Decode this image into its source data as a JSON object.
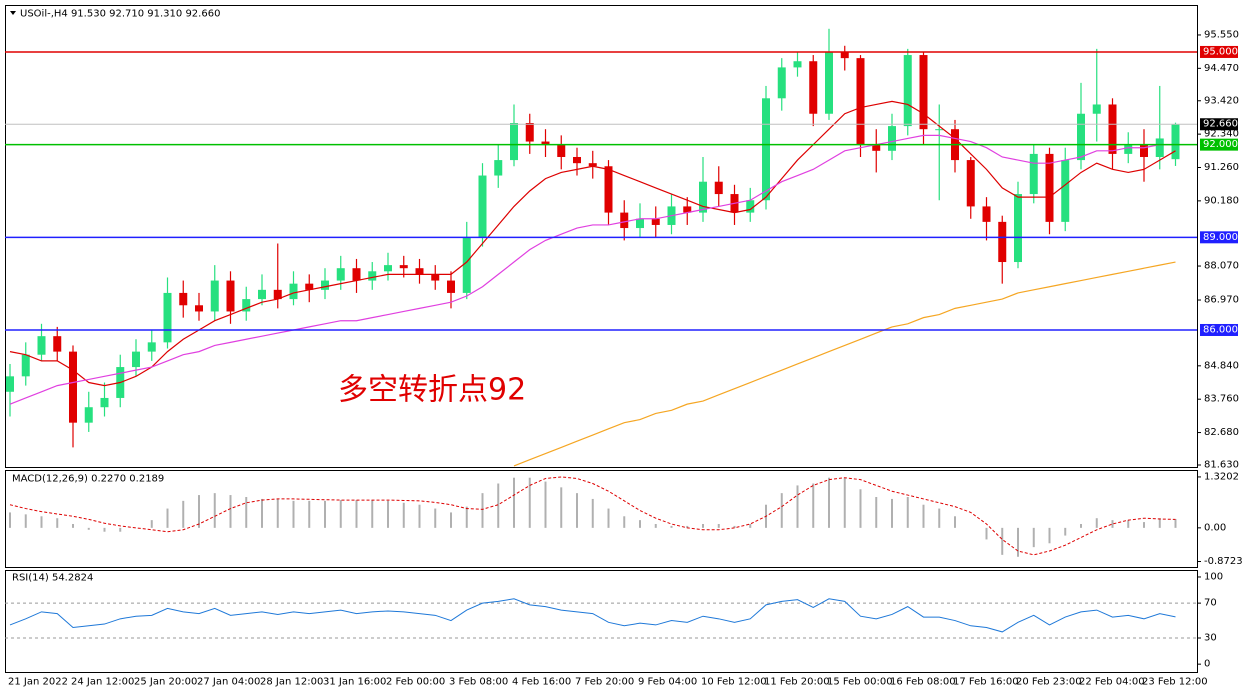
{
  "chart_data": [
    {
      "type": "candlestick",
      "title": "USOil-,H4  91.530 92.710 91.310 92.660",
      "annotation": "多空转折点92",
      "categories": [
        "21 Jan 2022",
        null,
        null,
        null,
        "24 Jan 12:00",
        null,
        null,
        null,
        "25 Jan 20:00",
        null,
        null,
        null,
        "27 Jan 04:00",
        null,
        null,
        null,
        "28 Jan 12:00",
        null,
        null,
        null,
        "31 Jan 16:00",
        null,
        null,
        null,
        "2 Feb 00:00",
        null,
        null,
        null,
        "3 Feb 08:00",
        null,
        null,
        null,
        "4 Feb 16:00",
        null,
        null,
        null,
        "7 Feb 20:00",
        null,
        null,
        null,
        "9 Feb 04:00",
        null,
        null,
        null,
        "10 Feb 12:00",
        null,
        null,
        null,
        "11 Feb 20:00",
        null,
        null,
        null,
        "15 Feb 00:00",
        null,
        null,
        null,
        "16 Feb 08:00",
        null,
        null,
        null,
        "17 Feb 16:00",
        null,
        null,
        null,
        "20 Feb 23:00",
        null,
        null,
        null,
        "22 Feb 04:00",
        null,
        null,
        null,
        "23 Feb 12:00",
        null,
        null
      ],
      "open": [
        84.0,
        84.5,
        85.2,
        85.8,
        85.3,
        83.0,
        83.5,
        83.8,
        84.8,
        85.3,
        85.6,
        87.2,
        86.8,
        86.6,
        87.6,
        86.6,
        87.0,
        87.3,
        87.0,
        87.5,
        87.3,
        87.6,
        88.0,
        87.6,
        87.9,
        88.1,
        88.0,
        87.8,
        87.6,
        87.2,
        89.0,
        91.0,
        91.5,
        92.7,
        92.1,
        92.0,
        91.6,
        91.4,
        91.3,
        89.8,
        89.3,
        89.6,
        89.4,
        90.0,
        89.8,
        90.8,
        90.4,
        89.8,
        90.2,
        93.5,
        94.5,
        94.7,
        93.0,
        95.0,
        94.8,
        92.0,
        91.8,
        92.6,
        94.9,
        92.5,
        92.5,
        91.5,
        90.0,
        89.5,
        88.2,
        90.4,
        91.7,
        89.5,
        91.5,
        93.0,
        93.3,
        91.7,
        92.0,
        91.6,
        91.53
      ],
      "high": [
        84.9,
        85.6,
        86.2,
        86.1,
        85.5,
        84.0,
        84.3,
        85.2,
        85.7,
        86.0,
        87.7,
        87.6,
        87.2,
        88.1,
        87.9,
        87.4,
        87.8,
        88.8,
        87.9,
        87.8,
        88.0,
        88.4,
        88.3,
        88.2,
        88.5,
        88.4,
        88.3,
        88.1,
        87.9,
        89.5,
        91.4,
        92.0,
        93.3,
        93.0,
        92.5,
        92.3,
        91.9,
        91.8,
        91.5,
        90.2,
        90.1,
        90.0,
        90.4,
        90.3,
        91.6,
        91.3,
        90.7,
        90.6,
        93.9,
        94.8,
        95.0,
        94.9,
        95.75,
        95.2,
        94.9,
        92.5,
        93.0,
        95.1,
        95.0,
        93.3,
        92.8,
        91.6,
        90.3,
        89.7,
        90.8,
        92.0,
        91.9,
        91.9,
        94.0,
        95.1,
        93.5,
        92.4,
        92.5,
        93.9,
        92.71
      ],
      "low": [
        83.2,
        84.2,
        85.0,
        85.0,
        82.2,
        82.7,
        83.2,
        83.5,
        84.5,
        85.0,
        85.4,
        86.4,
        86.3,
        86.3,
        86.2,
        86.3,
        86.8,
        86.7,
        86.8,
        86.9,
        87.0,
        87.3,
        87.2,
        87.3,
        87.6,
        87.7,
        87.5,
        87.3,
        86.7,
        87.0,
        88.7,
        90.6,
        91.3,
        91.7,
        91.6,
        91.2,
        91.0,
        90.9,
        89.4,
        88.9,
        89.0,
        89.0,
        89.1,
        89.4,
        89.5,
        90.0,
        89.4,
        89.5,
        89.9,
        93.1,
        94.2,
        92.6,
        92.8,
        94.4,
        91.6,
        91.1,
        91.5,
        92.3,
        92.0,
        90.2,
        91.1,
        89.6,
        88.9,
        87.5,
        88.0,
        90.1,
        89.1,
        89.2,
        91.2,
        92.1,
        91.2,
        91.4,
        90.8,
        91.2,
        91.31
      ],
      "close": [
        84.5,
        85.2,
        85.8,
        85.3,
        83.0,
        83.5,
        83.8,
        84.8,
        85.3,
        85.6,
        87.2,
        86.8,
        86.6,
        87.6,
        86.6,
        87.0,
        87.3,
        87.0,
        87.5,
        87.3,
        87.6,
        88.0,
        87.6,
        87.9,
        88.1,
        88.0,
        87.8,
        87.6,
        87.2,
        89.0,
        91.0,
        91.5,
        92.7,
        92.1,
        92.0,
        91.6,
        91.4,
        91.3,
        89.8,
        89.3,
        89.6,
        89.4,
        90.0,
        89.8,
        90.8,
        90.4,
        89.8,
        90.2,
        93.5,
        94.5,
        94.7,
        93.0,
        95.0,
        94.8,
        92.0,
        91.8,
        92.6,
        94.9,
        92.5,
        92.5,
        91.5,
        90.0,
        89.5,
        88.2,
        90.4,
        91.7,
        89.5,
        91.5,
        93.0,
        93.3,
        91.7,
        92.0,
        91.6,
        92.2,
        92.66
      ],
      "up_color": "#26e07f",
      "down_color": "#e00000",
      "series": [
        {
          "color": "#dd0000",
          "values": [
            85.3,
            85.2,
            85.0,
            85.0,
            84.7,
            84.3,
            84.2,
            84.3,
            84.5,
            84.8,
            85.3,
            85.7,
            86.0,
            86.3,
            86.5,
            86.7,
            86.9,
            87.0,
            87.2,
            87.3,
            87.4,
            87.5,
            87.6,
            87.7,
            87.8,
            87.8,
            87.8,
            87.8,
            87.8,
            88.2,
            88.8,
            89.4,
            90.0,
            90.5,
            90.9,
            91.1,
            91.2,
            91.3,
            91.2,
            91.0,
            90.8,
            90.6,
            90.4,
            90.2,
            90.0,
            89.9,
            89.8,
            89.9,
            90.3,
            90.9,
            91.5,
            92.0,
            92.5,
            93.0,
            93.2,
            93.3,
            93.4,
            93.3,
            93.0,
            92.6,
            92.2,
            91.7,
            91.2,
            90.6,
            90.3,
            90.3,
            90.3,
            90.7,
            91.1,
            91.4,
            91.2,
            91.1,
            91.2,
            91.5,
            91.8
          ]
        },
        {
          "color": "#e040e0",
          "values": [
            83.6,
            83.8,
            84.0,
            84.2,
            84.3,
            84.4,
            84.5,
            84.6,
            84.7,
            84.8,
            85.0,
            85.2,
            85.3,
            85.5,
            85.6,
            85.7,
            85.8,
            85.9,
            86.0,
            86.1,
            86.2,
            86.3,
            86.3,
            86.4,
            86.5,
            86.6,
            86.7,
            86.8,
            86.9,
            87.1,
            87.4,
            87.8,
            88.2,
            88.6,
            88.9,
            89.1,
            89.3,
            89.4,
            89.4,
            89.5,
            89.6,
            89.6,
            89.7,
            89.8,
            89.9,
            90.0,
            90.1,
            90.2,
            90.5,
            90.8,
            91.0,
            91.2,
            91.5,
            91.8,
            91.9,
            92.0,
            92.1,
            92.2,
            92.3,
            92.3,
            92.2,
            92.1,
            91.9,
            91.6,
            91.5,
            91.4,
            91.4,
            91.5,
            91.6,
            91.8,
            91.8,
            91.9,
            91.9,
            92.0,
            92.0
          ]
        },
        {
          "color": "#f5a623",
          "values": [
            null,
            null,
            null,
            null,
            null,
            null,
            null,
            null,
            null,
            null,
            null,
            null,
            null,
            null,
            null,
            null,
            null,
            null,
            null,
            null,
            null,
            null,
            null,
            null,
            null,
            null,
            null,
            null,
            null,
            null,
            null,
            null,
            81.6,
            81.8,
            82.0,
            82.2,
            82.4,
            82.6,
            82.8,
            83.0,
            83.1,
            83.3,
            83.4,
            83.6,
            83.7,
            83.9,
            84.1,
            84.3,
            84.5,
            84.7,
            84.9,
            85.1,
            85.3,
            85.5,
            85.7,
            85.9,
            86.1,
            86.2,
            86.4,
            86.5,
            86.7,
            86.8,
            86.9,
            87.0,
            87.2,
            87.3,
            87.4,
            87.5,
            87.6,
            87.7,
            87.8,
            87.9,
            88.0,
            88.1,
            88.2
          ]
        }
      ],
      "levels": [
        {
          "value": 95,
          "label": "95.000",
          "color": "#e00000"
        },
        {
          "value": 92,
          "label": "92.000",
          "color": "#00c000"
        },
        {
          "value": 89,
          "label": "89.000",
          "color": "#2020ff"
        },
        {
          "value": 86,
          "label": "86.000",
          "color": "#2020ff"
        }
      ],
      "current_price": {
        "value": 92.66,
        "label": "92.660"
      },
      "ylim": [
        81.565,
        96.52
      ],
      "yticks": [
        {
          "value": 95.55,
          "label": "95.550"
        },
        {
          "value": 94.47,
          "label": "94.470"
        },
        {
          "value": 93.42,
          "label": "93.420"
        },
        {
          "value": 92.34,
          "label": "92.340"
        },
        {
          "value": 91.26,
          "label": "91.260"
        },
        {
          "value": 90.18,
          "label": "90.180"
        },
        {
          "value": 88.07,
          "label": "88.070"
        },
        {
          "value": 86.97,
          "label": "86.970"
        },
        {
          "value": 84.84,
          "label": "84.840"
        },
        {
          "value": 83.76,
          "label": "83.760"
        },
        {
          "value": 82.68,
          "label": "82.680"
        },
        {
          "value": 81.63,
          "label": "81.630"
        }
      ]
    },
    {
      "type": "macd",
      "title": "MACD(12,26,9) 0.2270 0.2189",
      "histogram_color": "#b0b0b0",
      "signal_color": "#dd0000",
      "histogram": [
        0.4,
        0.35,
        0.3,
        0.25,
        0.1,
        -0.05,
        -0.1,
        -0.1,
        0.0,
        0.2,
        0.5,
        0.7,
        0.85,
        0.9,
        0.85,
        0.8,
        0.75,
        0.75,
        0.7,
        0.7,
        0.7,
        0.72,
        0.72,
        0.72,
        0.7,
        0.65,
        0.6,
        0.5,
        0.4,
        0.55,
        0.9,
        1.15,
        1.3,
        1.3,
        1.2,
        1.05,
        0.9,
        0.75,
        0.5,
        0.3,
        0.2,
        0.1,
        0.05,
        0.05,
        0.1,
        0.1,
        0.05,
        0.1,
        0.6,
        0.9,
        1.1,
        1.15,
        1.3,
        1.3,
        1.0,
        0.8,
        0.75,
        0.8,
        0.6,
        0.5,
        0.3,
        0.0,
        -0.3,
        -0.7,
        -0.75,
        -0.5,
        -0.4,
        -0.2,
        0.1,
        0.25,
        0.2,
        0.2,
        0.15,
        0.25,
        0.227
      ],
      "signal": [
        0.6,
        0.5,
        0.42,
        0.36,
        0.3,
        0.22,
        0.12,
        0.05,
        0.0,
        -0.05,
        -0.1,
        -0.05,
        0.1,
        0.3,
        0.5,
        0.65,
        0.72,
        0.75,
        0.75,
        0.74,
        0.73,
        0.72,
        0.72,
        0.72,
        0.72,
        0.71,
        0.7,
        0.66,
        0.6,
        0.5,
        0.48,
        0.6,
        0.85,
        1.1,
        1.28,
        1.32,
        1.28,
        1.15,
        0.95,
        0.7,
        0.45,
        0.25,
        0.1,
        0.0,
        -0.05,
        -0.05,
        0.0,
        0.1,
        0.3,
        0.55,
        0.85,
        1.1,
        1.25,
        1.3,
        1.25,
        1.1,
        0.95,
        0.85,
        0.75,
        0.65,
        0.55,
        0.4,
        0.1,
        -0.3,
        -0.6,
        -0.7,
        -0.6,
        -0.45,
        -0.25,
        -0.05,
        0.1,
        0.2,
        0.25,
        0.23,
        0.2189
      ],
      "ylim": [
        -1.015,
        1.5
      ],
      "yticks": [
        1.3202,
        {
          "value": 0,
          "label": "0.00"
        },
        -0.8723
      ]
    },
    {
      "type": "line",
      "title": "RSI(14) 54.2824",
      "color": "#1e78d8",
      "values": [
        45,
        52,
        60,
        58,
        42,
        44,
        46,
        52,
        55,
        56,
        64,
        60,
        58,
        64,
        56,
        58,
        60,
        57,
        60,
        58,
        60,
        62,
        58,
        60,
        61,
        60,
        58,
        56,
        50,
        62,
        70,
        72,
        75,
        68,
        66,
        62,
        60,
        58,
        48,
        44,
        47,
        45,
        50,
        48,
        55,
        52,
        48,
        52,
        68,
        72,
        74,
        65,
        75,
        72,
        55,
        52,
        57,
        66,
        54,
        54,
        50,
        44,
        42,
        37,
        48,
        56,
        45,
        54,
        60,
        62,
        54,
        56,
        52,
        58,
        54.2824
      ],
      "levels": [
        70,
        30
      ],
      "ylim": [
        -9,
        108
      ],
      "yticks": [
        100,
        70,
        30,
        0
      ]
    }
  ]
}
